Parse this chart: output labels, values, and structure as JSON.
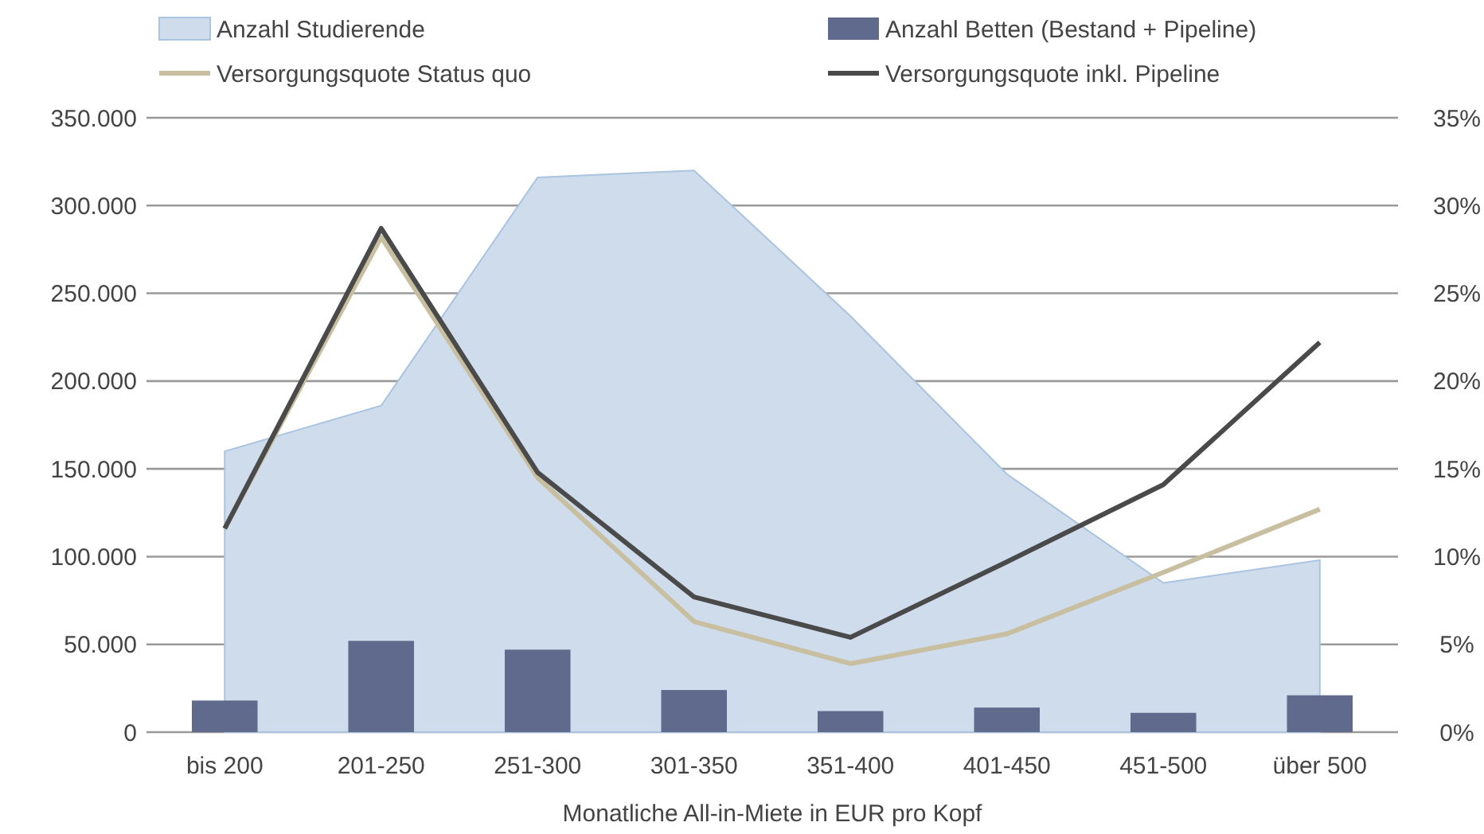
{
  "chart_data": {
    "type": "bar",
    "xlabel": "Monatliche All-in-Miete in EUR pro Kopf",
    "categories": [
      "bis 200",
      "201-250",
      "251-300",
      "301-350",
      "351-400",
      "401-450",
      "451-500",
      "über 500"
    ],
    "series": [
      {
        "name": "Anzahl Studierende",
        "type": "area",
        "color": "#cfdcec",
        "values": [
          160000,
          186000,
          316000,
          320000,
          237000,
          147000,
          85000,
          98000
        ]
      },
      {
        "name": "Anzahl Betten (Bestand + Pipeline)",
        "color": "#5f6a8c",
        "values": [
          18000,
          52000,
          47000,
          24000,
          12000,
          14000,
          11000,
          21000
        ]
      },
      {
        "name": "Versorgungsquote Status quo",
        "type": "line",
        "axis": "y2",
        "color": "#c8bfa0",
        "values": [
          11.6,
          28.2,
          14.5,
          6.3,
          3.9,
          5.6,
          9.1,
          12.7
        ]
      },
      {
        "name": "Versorgungsquote inkl. Pipeline",
        "type": "line",
        "axis": "y2",
        "color": "#4a4a4a",
        "values": [
          11.6,
          28.7,
          14.8,
          7.7,
          5.4,
          9.7,
          14.1,
          22.2
        ]
      }
    ],
    "ylim": [
      0,
      350000
    ],
    "yticks": [
      0,
      {
        "value": 50000,
        "label": "50.000"
      },
      {
        "value": 100000,
        "label": "100.000"
      },
      {
        "value": 150000,
        "label": "150.000"
      },
      {
        "value": 200000,
        "label": "200.000"
      },
      {
        "value": 250000,
        "label": "250.000"
      },
      {
        "value": 300000,
        "label": "300.000"
      },
      {
        "value": 350000,
        "label": "350.000"
      }
    ],
    "y2lim": [
      0,
      35
    ],
    "y2ticks": [
      {
        "value": 0,
        "label": "0%"
      },
      {
        "value": 5,
        "label": "5%"
      },
      {
        "value": 10,
        "label": "10%"
      },
      {
        "value": 15,
        "label": "15%"
      },
      {
        "value": 20,
        "label": "20%"
      },
      {
        "value": 25,
        "label": "25%"
      },
      {
        "value": 30,
        "label": "30%"
      },
      {
        "value": 35,
        "label": "35%"
      }
    ],
    "grid": "y",
    "legend": "top",
    "marker": "none",
    "line_style": "solid"
  }
}
